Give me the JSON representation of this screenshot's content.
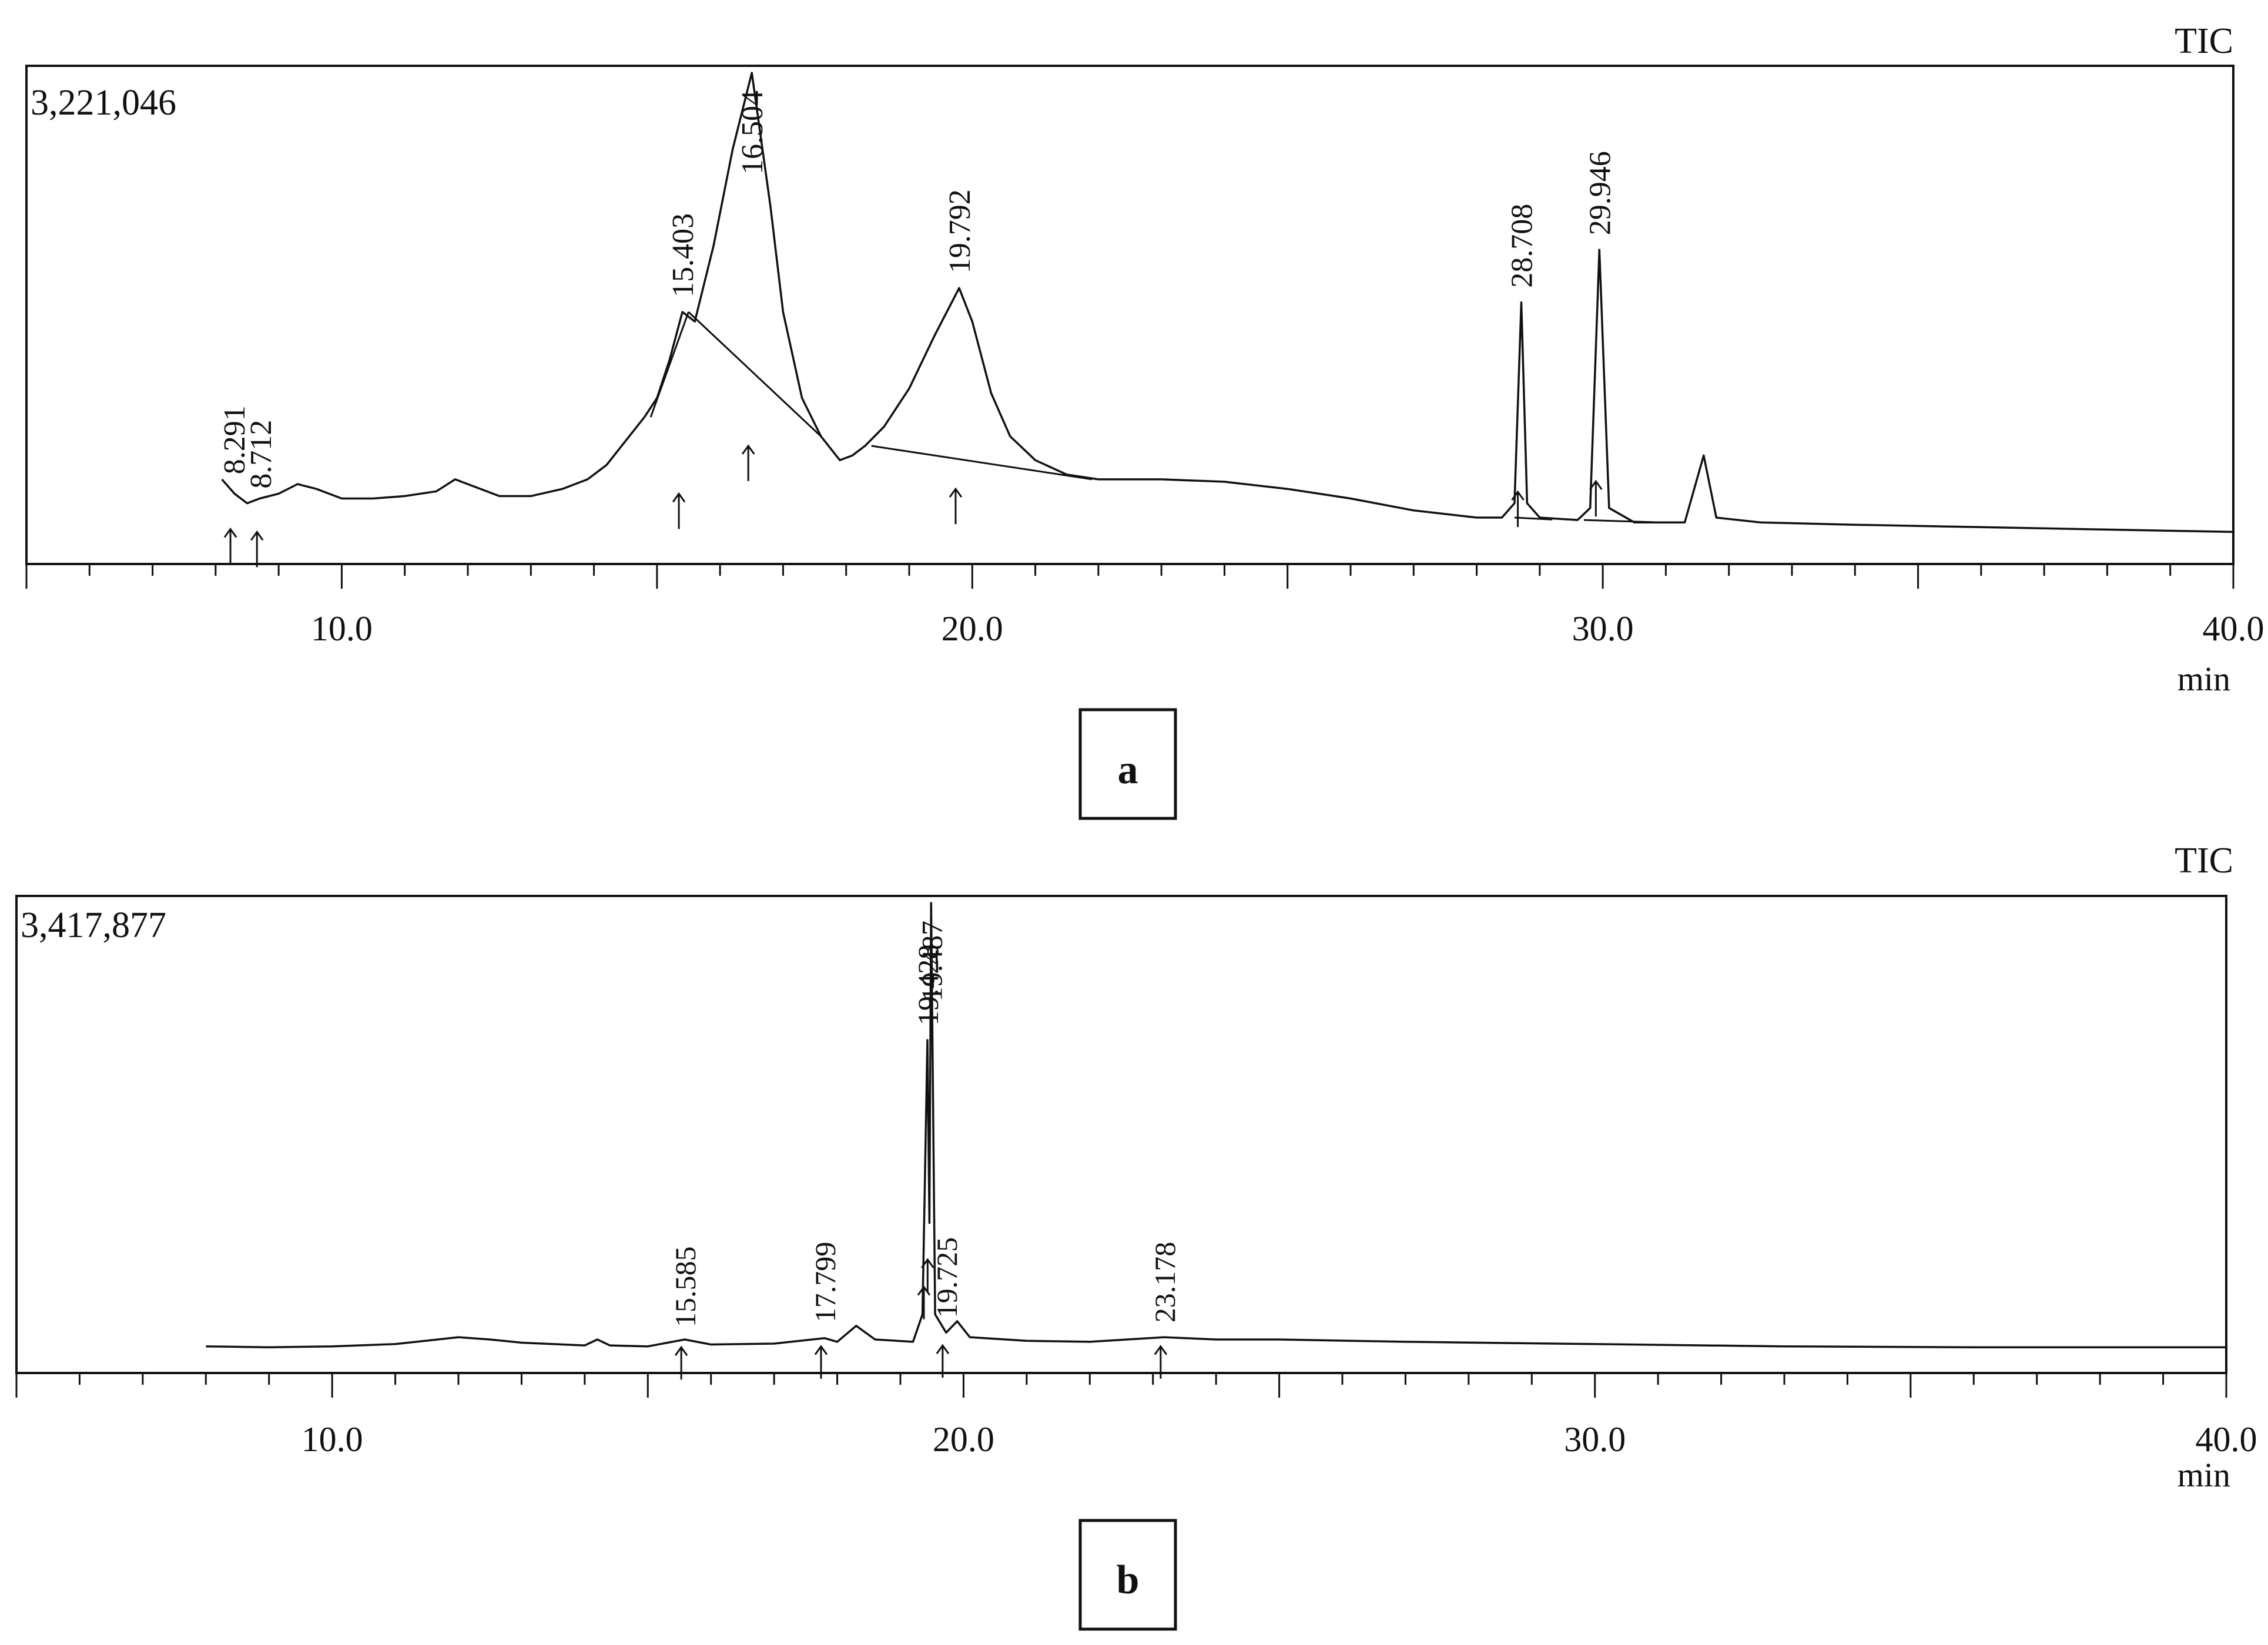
{
  "chart_data": [
    {
      "type": "line",
      "panel_label": "a",
      "detector": "TIC",
      "intensity_max": "3,221,046",
      "x_unit": "min",
      "xlim": [
        5.0,
        40.0
      ],
      "x_tick_labels": [
        "10.0",
        "20.0",
        "30.0",
        "40.0"
      ],
      "peak_labels": [
        "8.291",
        "8.712",
        "15.403",
        "16.504",
        "19.792",
        "28.708",
        "29.946"
      ],
      "peaks": [
        {
          "rt": 8.291,
          "rel_height": 0.13
        },
        {
          "rt": 8.712,
          "rel_height": 0.1
        },
        {
          "rt": 15.403,
          "rel_height": 0.5
        },
        {
          "rt": 16.504,
          "rel_height": 1.0
        },
        {
          "rt": 19.792,
          "rel_height": 0.55
        },
        {
          "rt": 28.708,
          "rel_height": 0.52
        },
        {
          "rt": 29.946,
          "rel_height": 0.63
        }
      ],
      "trace": [
        [
          8.1,
          0.15
        ],
        [
          8.3,
          0.12
        ],
        [
          8.5,
          0.1
        ],
        [
          8.7,
          0.11
        ],
        [
          9.0,
          0.12
        ],
        [
          9.3,
          0.14
        ],
        [
          9.6,
          0.13
        ],
        [
          10.0,
          0.11
        ],
        [
          10.5,
          0.11
        ],
        [
          11.0,
          0.115
        ],
        [
          11.5,
          0.125
        ],
        [
          11.8,
          0.15
        ],
        [
          12.1,
          0.135
        ],
        [
          12.5,
          0.115
        ],
        [
          13.0,
          0.115
        ],
        [
          13.5,
          0.13
        ],
        [
          13.9,
          0.15
        ],
        [
          14.2,
          0.18
        ],
        [
          14.5,
          0.23
        ],
        [
          14.8,
          0.28
        ],
        [
          15.0,
          0.32
        ],
        [
          15.2,
          0.4
        ],
        [
          15.403,
          0.5
        ],
        [
          15.6,
          0.48
        ],
        [
          15.9,
          0.64
        ],
        [
          16.2,
          0.84
        ],
        [
          16.504,
          1.0
        ],
        [
          16.8,
          0.72
        ],
        [
          17.0,
          0.5
        ],
        [
          17.3,
          0.32
        ],
        [
          17.6,
          0.24
        ],
        [
          17.9,
          0.19
        ],
        [
          18.1,
          0.2
        ],
        [
          18.3,
          0.22
        ],
        [
          18.6,
          0.26
        ],
        [
          19.0,
          0.34
        ],
        [
          19.4,
          0.45
        ],
        [
          19.792,
          0.55
        ],
        [
          20.0,
          0.48
        ],
        [
          20.3,
          0.33
        ],
        [
          20.6,
          0.24
        ],
        [
          21.0,
          0.19
        ],
        [
          21.5,
          0.16
        ],
        [
          22.0,
          0.15
        ],
        [
          23.0,
          0.15
        ],
        [
          24.0,
          0.145
        ],
        [
          25.0,
          0.13
        ],
        [
          26.0,
          0.11
        ],
        [
          27.0,
          0.085
        ],
        [
          28.0,
          0.07
        ],
        [
          28.4,
          0.07
        ],
        [
          28.6,
          0.1
        ],
        [
          28.708,
          0.52
        ],
        [
          28.8,
          0.1
        ],
        [
          29.0,
          0.07
        ],
        [
          29.6,
          0.065
        ],
        [
          29.8,
          0.09
        ],
        [
          29.946,
          0.63
        ],
        [
          30.1,
          0.09
        ],
        [
          30.5,
          0.06
        ],
        [
          31.3,
          0.06
        ],
        [
          31.6,
          0.2
        ],
        [
          31.8,
          0.07
        ],
        [
          32.5,
          0.06
        ],
        [
          34.0,
          0.055
        ],
        [
          36.0,
          0.05
        ],
        [
          38.0,
          0.045
        ],
        [
          40.0,
          0.04
        ]
      ]
    },
    {
      "type": "line",
      "panel_label": "b",
      "detector": "TIC",
      "intensity_max": "3,417,877",
      "x_unit": "min",
      "xlim": [
        5.0,
        40.0
      ],
      "x_tick_labels": [
        "10.0",
        "20.0",
        "30.0",
        "40.0"
      ],
      "peak_labels": [
        "15.585",
        "17.799",
        "19.428",
        "19.487",
        "19.725",
        "23.178"
      ],
      "peaks": [
        {
          "rt": 15.585,
          "rel_height": 0.04
        },
        {
          "rt": 17.799,
          "rel_height": 0.05
        },
        {
          "rt": 19.428,
          "rel_height": 0.7
        },
        {
          "rt": 19.487,
          "rel_height": 1.0
        },
        {
          "rt": 19.725,
          "rel_height": 0.06
        },
        {
          "rt": 23.178,
          "rel_height": 0.05
        }
      ],
      "trace": [
        [
          8.0,
          0.03
        ],
        [
          9.0,
          0.028
        ],
        [
          10.0,
          0.03
        ],
        [
          11.0,
          0.035
        ],
        [
          12.0,
          0.05
        ],
        [
          12.5,
          0.045
        ],
        [
          13.0,
          0.038
        ],
        [
          14.0,
          0.032
        ],
        [
          14.2,
          0.045
        ],
        [
          14.4,
          0.032
        ],
        [
          15.0,
          0.03
        ],
        [
          15.585,
          0.045
        ],
        [
          16.0,
          0.034
        ],
        [
          17.0,
          0.036
        ],
        [
          17.799,
          0.048
        ],
        [
          18.0,
          0.04
        ],
        [
          18.3,
          0.075
        ],
        [
          18.6,
          0.045
        ],
        [
          19.2,
          0.04
        ],
        [
          19.35,
          0.1
        ],
        [
          19.428,
          0.7
        ],
        [
          19.46,
          0.3
        ],
        [
          19.487,
          1.0
        ],
        [
          19.55,
          0.1
        ],
        [
          19.725,
          0.06
        ],
        [
          19.9,
          0.085
        ],
        [
          20.1,
          0.05
        ],
        [
          21.0,
          0.042
        ],
        [
          22.0,
          0.04
        ],
        [
          23.178,
          0.05
        ],
        [
          24.0,
          0.045
        ],
        [
          25.0,
          0.045
        ],
        [
          27.0,
          0.04
        ],
        [
          30.0,
          0.035
        ],
        [
          33.0,
          0.03
        ],
        [
          36.0,
          0.028
        ],
        [
          40.0,
          0.028
        ]
      ]
    }
  ]
}
